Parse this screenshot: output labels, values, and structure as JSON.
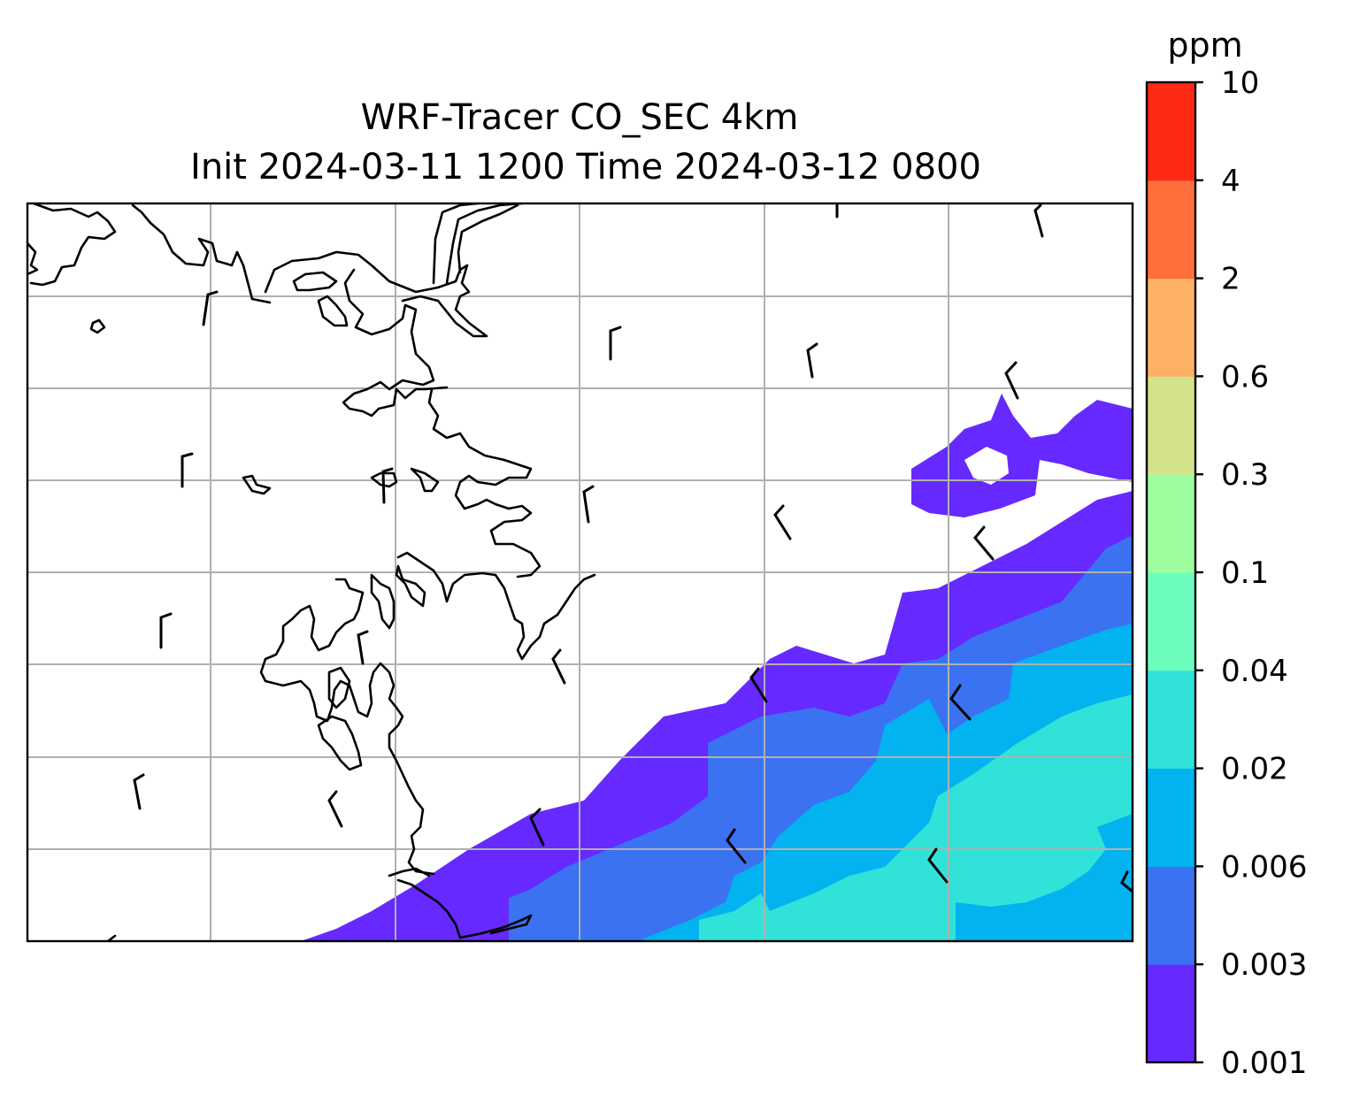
{
  "map": {
    "title_line1": "WRF-Tracer CO_SEC 4km",
    "title_line2": "Init 2024-03-11 1200 Time 2024-03-12 0800",
    "gridlines": true,
    "coastlines": true
  },
  "colorbar": {
    "unit": "ppm",
    "tick_labels": [
      "0.001",
      "0.003",
      "0.006",
      "0.02",
      "0.04",
      "0.1",
      "0.3",
      "0.6",
      "2",
      "4",
      "10"
    ],
    "bands": [
      {
        "color": "#6629ff"
      },
      {
        "color": "#3a72f2"
      },
      {
        "color": "#03b3ef"
      },
      {
        "color": "#31e2d8"
      },
      {
        "color": "#6cfdbd"
      },
      {
        "color": "#9cfe9f"
      },
      {
        "color": "#d2e38a"
      },
      {
        "color": "#fdb165"
      },
      {
        "color": "#ff6f3c"
      },
      {
        "color": "#ff2a15"
      }
    ]
  }
}
